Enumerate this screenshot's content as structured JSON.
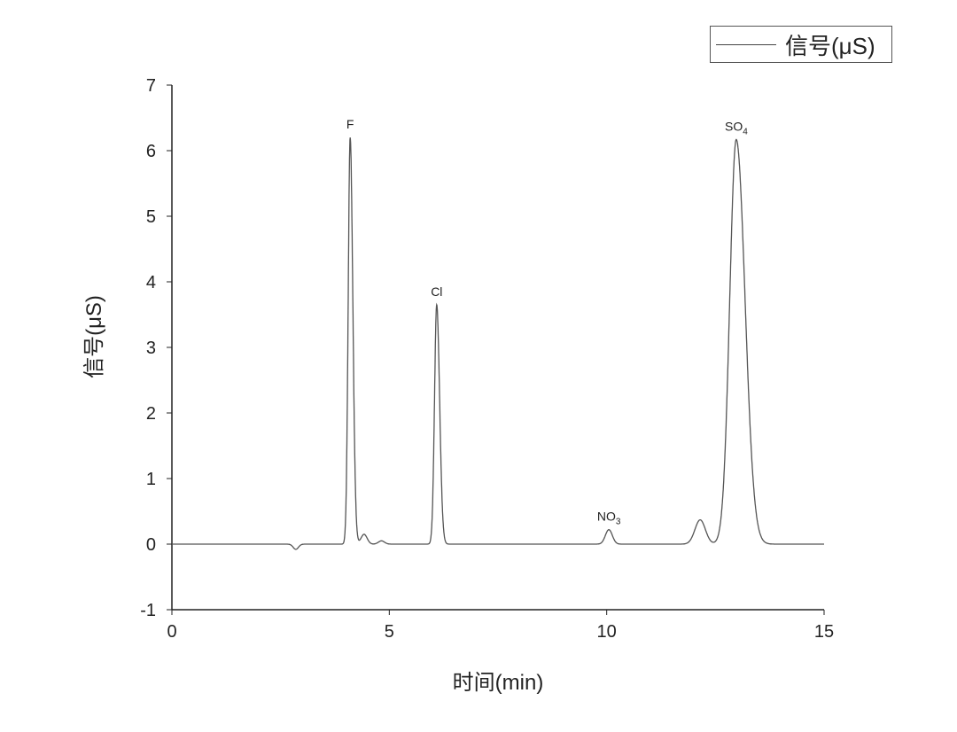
{
  "chart_data": {
    "type": "line",
    "xlabel": "时间(min)",
    "ylabel": "信号(μS)",
    "xlim": [
      0,
      15
    ],
    "ylim": [
      -1,
      7
    ],
    "xticks": [
      "0",
      "5",
      "10",
      "15"
    ],
    "yticks": [
      "-1",
      "0",
      "1",
      "2",
      "3",
      "4",
      "5",
      "6",
      "7"
    ],
    "grid": false,
    "legend": {
      "position": "top-right",
      "entries": [
        "信号(μS)"
      ]
    },
    "series": [
      {
        "name": "信号(μS)",
        "color": "#555555"
      }
    ],
    "peaks": [
      {
        "label": "F",
        "time_min": 4.1,
        "height_uS": 6.2
      },
      {
        "label": "Cl",
        "time_min": 6.09,
        "height_uS": 3.65
      },
      {
        "label": "NO3",
        "label_sub": "3",
        "label_main": "NO",
        "time_min": 10.05,
        "height_uS": 0.22
      },
      {
        "label": "",
        "time_min": 12.15,
        "height_uS": 0.37
      },
      {
        "label": "SO4",
        "label_sub": "4",
        "label_main": "SO",
        "time_min": 12.98,
        "height_uS": 6.17
      }
    ],
    "minor_features": [
      {
        "time_min": 2.85,
        "height_uS": -0.08
      },
      {
        "time_min": 4.42,
        "height_uS": 0.15
      },
      {
        "time_min": 4.82,
        "height_uS": 0.05
      }
    ]
  }
}
